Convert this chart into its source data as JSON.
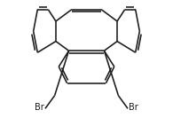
{
  "bg_color": "#ffffff",
  "bond_color": "#1a1a1a",
  "line_width": 1.15,
  "text_color": "#1a1a1a",
  "label_fontsize": 7.0,
  "dbl_sep": 0.018
}
